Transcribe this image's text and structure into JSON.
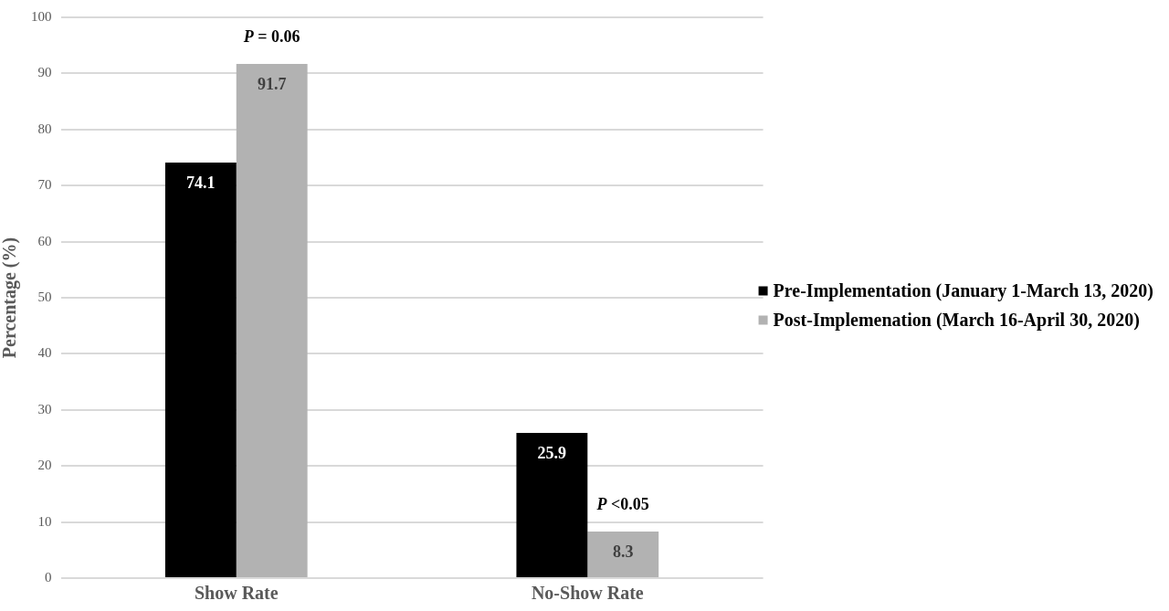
{
  "chart_data": {
    "type": "bar",
    "categories": [
      "Show Rate",
      "No-Show Rate"
    ],
    "series": [
      {
        "name": "Pre-Implementation (January 1-March 13, 2020)",
        "color": "#000000",
        "values": [
          74.1,
          25.9
        ]
      },
      {
        "name": "Post-Implemenation (March 16-April 30, 2020)",
        "color": "#b2b2b2",
        "values": [
          91.7,
          8.3
        ]
      }
    ],
    "ylabel": "Percentage (%)",
    "ylim": [
      0,
      100
    ],
    "yticks": [
      0,
      10,
      20,
      30,
      40,
      50,
      60,
      70,
      80,
      90,
      100
    ],
    "grid": "y",
    "legend": "right",
    "data_labels": true,
    "annotations": [
      "P = 0.06",
      "P <0.05"
    ]
  }
}
